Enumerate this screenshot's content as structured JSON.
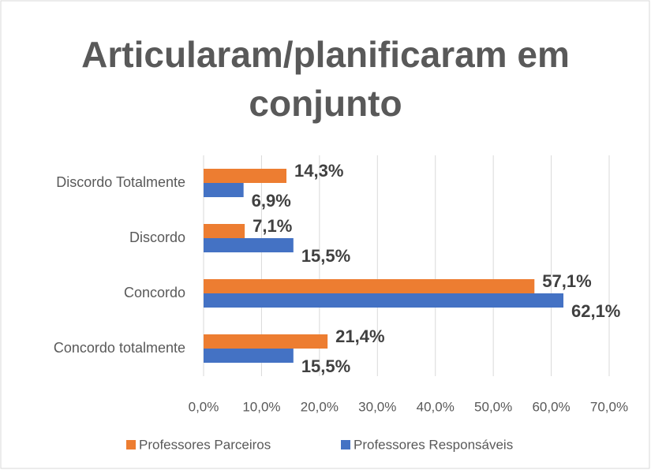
{
  "chart_data": {
    "type": "hbar",
    "title": "Articularam/planificaram em conjunto",
    "categories": [
      "Discordo Totalmente",
      "Discordo",
      "Concordo",
      "Concordo totalmente"
    ],
    "series": [
      {
        "name": "Professores Parceiros",
        "color": "#ED7D31",
        "values": [
          14.3,
          7.1,
          57.1,
          21.4
        ],
        "value_labels": [
          "14,3%",
          "7,1%",
          "57,1%",
          "21,4%"
        ]
      },
      {
        "name": "Professores Responsáveis",
        "color": "#4472C4",
        "values": [
          6.9,
          15.5,
          62.1,
          15.5
        ],
        "value_labels": [
          "6,9%",
          "15,5%",
          "62,1%",
          "15,5%"
        ]
      }
    ],
    "xlim": [
      0,
      70
    ],
    "xticks": [
      {
        "value": 0,
        "label": "0,0%"
      },
      {
        "value": 10,
        "label": "10,0%"
      },
      {
        "value": 20,
        "label": "20,0%"
      },
      {
        "value": 30,
        "label": "30,0%"
      },
      {
        "value": 40,
        "label": "40,0%"
      },
      {
        "value": 50,
        "label": "50,0%"
      },
      {
        "value": 60,
        "label": "60,0%"
      },
      {
        "value": 70,
        "label": "70,0%"
      }
    ],
    "grid": true,
    "legend": "bottom"
  }
}
